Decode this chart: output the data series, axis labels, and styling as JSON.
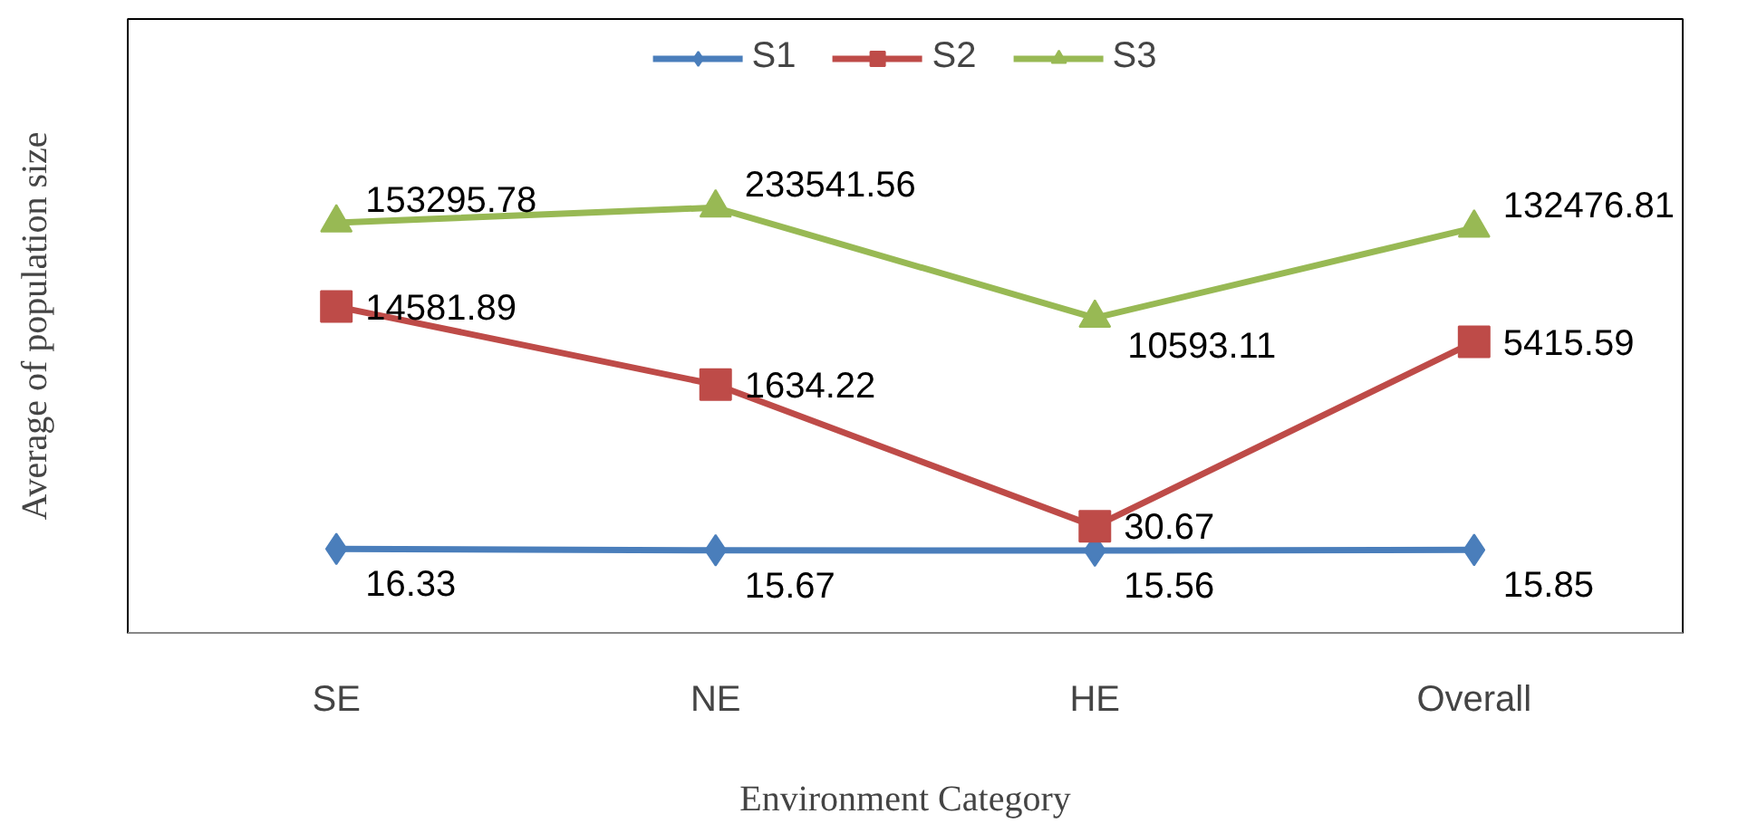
{
  "chart_data": {
    "type": "line",
    "xlabel": "Environment Category",
    "ylabel": "Average of population size",
    "categories": [
      "SE",
      "NE",
      "HE",
      "Overall"
    ],
    "series": [
      {
        "name": "S1",
        "color": "#4a7ebb",
        "marker": "diamond",
        "values": [
          16.33,
          15.67,
          15.56,
          15.85
        ]
      },
      {
        "name": "S2",
        "color": "#be4b48",
        "marker": "square",
        "values": [
          14581.89,
          1634.22,
          30.67,
          5415.59
        ]
      },
      {
        "name": "S3",
        "color": "#98b954",
        "marker": "triangle",
        "values": [
          153295.78,
          233541.56,
          10593.11,
          132476.81
        ]
      }
    ],
    "log": true,
    "grid": false,
    "legend": "top",
    "data_labels": true
  }
}
